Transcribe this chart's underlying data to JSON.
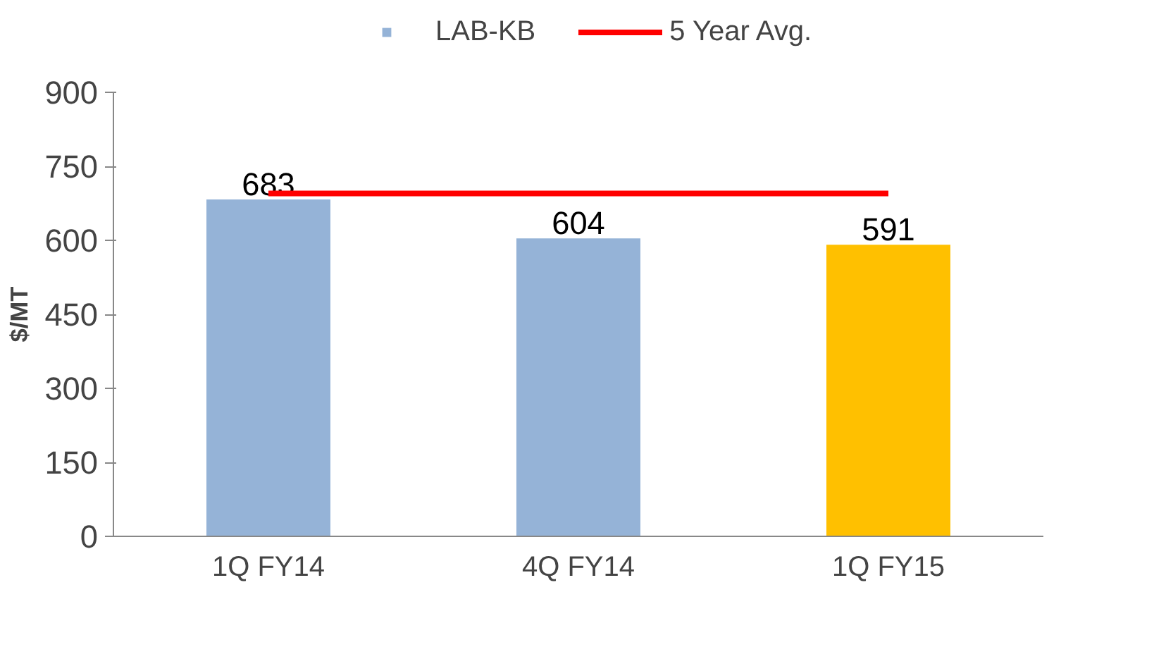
{
  "chart_data": {
    "type": "bar",
    "categories": [
      "1Q FY14",
      "4Q FY14",
      "1Q FY15"
    ],
    "ylabel": "$/MT",
    "ylim": [
      0,
      900
    ],
    "yticks": [
      0,
      150,
      300,
      450,
      600,
      750,
      900
    ],
    "legend": "top",
    "grid": false,
    "series": [
      {
        "name": "LAB-KB",
        "color": "#95b3d7",
        "colors": [
          "#95b3d7",
          "#95b3d7",
          "#ffc000"
        ],
        "values": [
          683,
          604,
          591
        ],
        "value_labels": [
          "683",
          "604",
          "591"
        ]
      },
      {
        "name": "5 Year Avg.",
        "type": "line",
        "color": "#ff0000",
        "values": [
          695,
          695,
          695
        ]
      }
    ]
  }
}
